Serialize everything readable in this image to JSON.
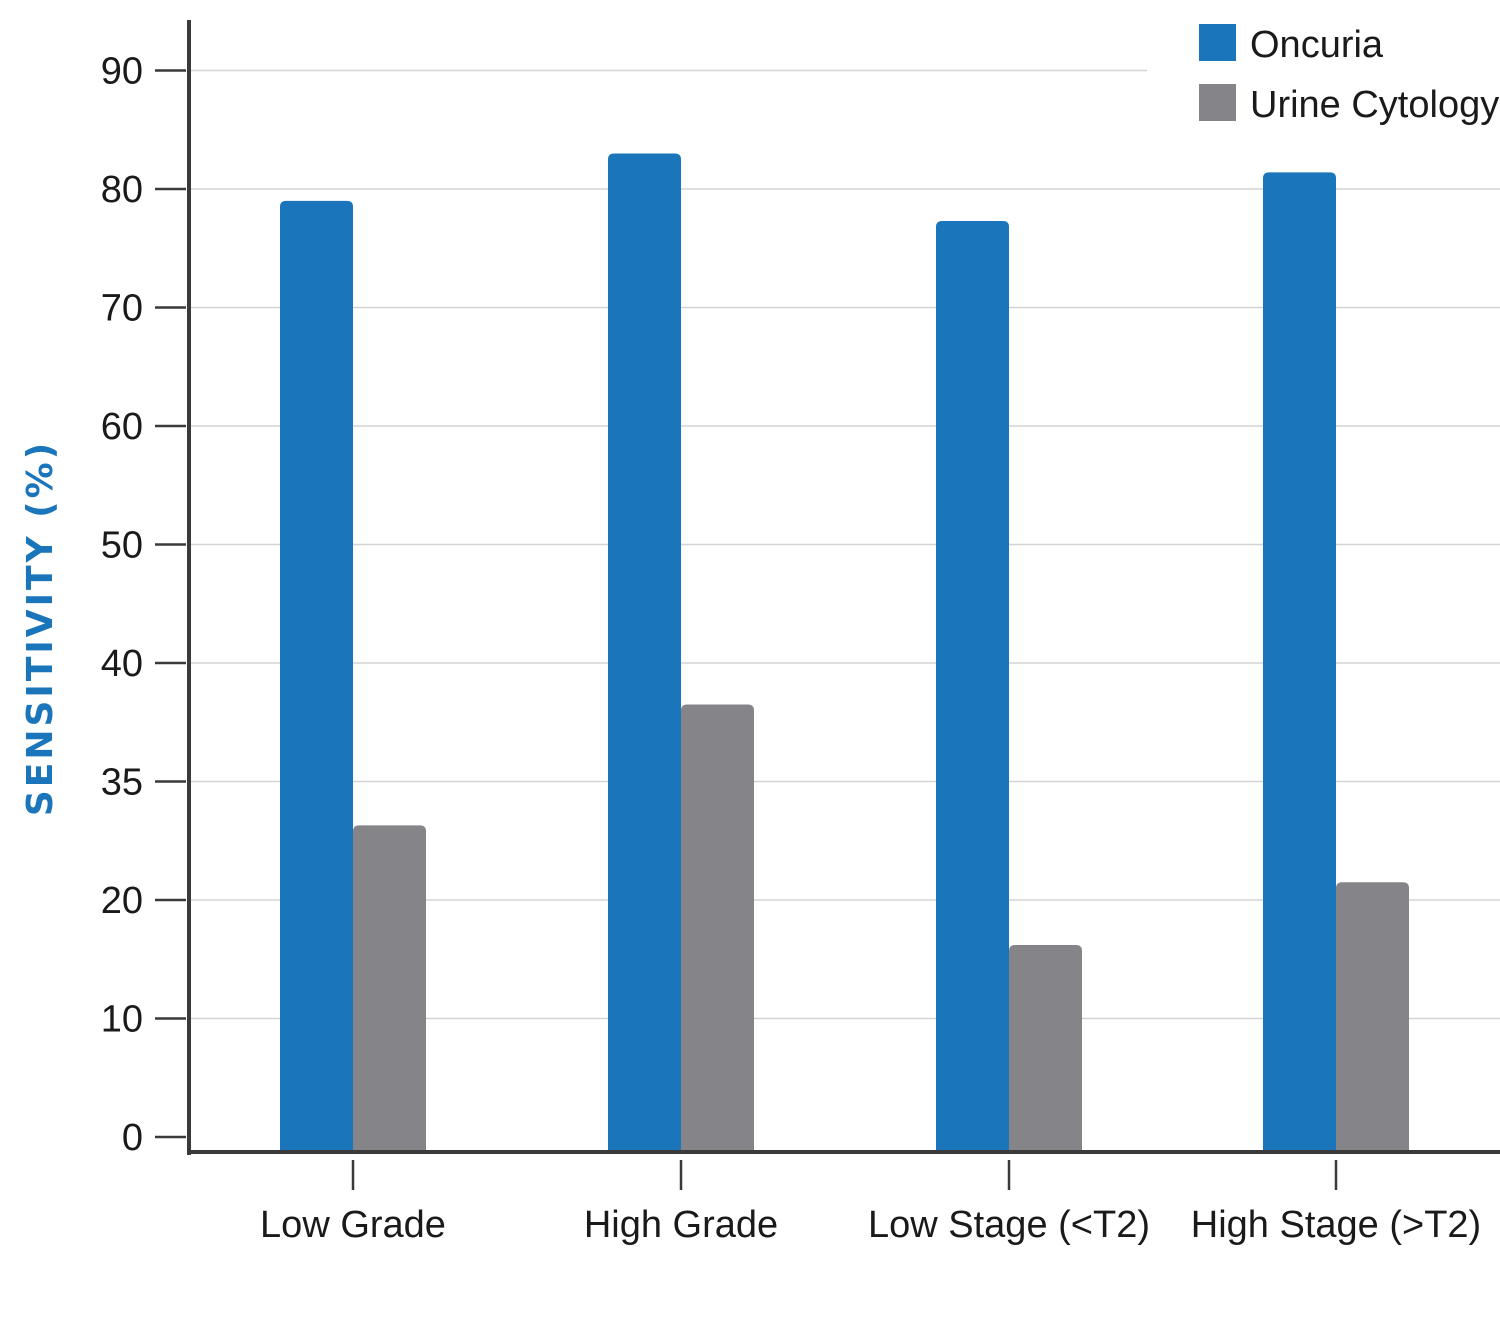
{
  "chart_data": {
    "type": "bar",
    "title": "",
    "xlabel": "",
    "ylabel": "SENSITIVITY (%)",
    "categories": [
      "Low Grade",
      "High Grade",
      "Low Stage (<T2)",
      "High Stage (>T2)"
    ],
    "y_ticks": [
      "0",
      "10",
      "20",
      "35",
      "40",
      "50",
      "60",
      "70",
      "80",
      "90"
    ],
    "series": [
      {
        "name": "Oncuria",
        "color": "#1a75bb",
        "values": [
          79,
          83,
          77.3,
          81.4
        ]
      },
      {
        "name": "Urine Cytology",
        "color": "#858589",
        "values": [
          26.3,
          36.5,
          16.2,
          21.5
        ]
      }
    ],
    "grid": true,
    "legend_position": "top-right",
    "axis_color": "#3a3a3a",
    "grid_color": "#d4d4d4",
    "ylabel_color": "#1a75bb"
  }
}
